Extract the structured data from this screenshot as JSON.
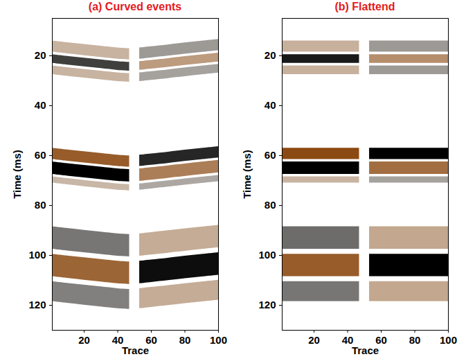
{
  "chart_data": [
    {
      "type": "image",
      "title": "(a) Curved events",
      "x_label": "Trace",
      "y_label": "Time (ms)",
      "xlim": [
        1,
        100
      ],
      "ylim": [
        5,
        130
      ],
      "xticks": [
        20,
        40,
        60,
        80,
        100
      ],
      "yticks": [
        20,
        40,
        60,
        80,
        100,
        120
      ],
      "clim": [
        -1,
        1
      ],
      "color": [
        "#000000",
        "#ffffff",
        "#8b4a12"
      ],
      "stripes": [
        {
          "x": [
            1,
            10,
            20,
            30,
            40,
            47
          ],
          "t_top": [
            14,
            14.7,
            15.4,
            16.1,
            16.8,
            17.1
          ],
          "t_bottom": [
            18.5,
            19.2,
            19.9,
            20.6,
            21.3,
            21.6
          ],
          "amplitude": 0.25
        },
        {
          "x": [
            1,
            10,
            20,
            30,
            40,
            47
          ],
          "t_top": [
            19.5,
            20.2,
            20.9,
            21.6,
            22.3,
            22.6
          ],
          "t_bottom": [
            23,
            23.7,
            24.4,
            25.1,
            25.8,
            26.1
          ],
          "amplitude": -0.75
        },
        {
          "x": [
            1,
            10,
            20,
            30,
            40,
            47
          ],
          "t_top": [
            24,
            24.7,
            25.4,
            26.1,
            26.8,
            27.1
          ],
          "t_bottom": [
            27.5,
            28.2,
            28.9,
            29.6,
            30.3,
            30.6
          ],
          "amplitude": 0.25
        },
        {
          "x": [
            53,
            60,
            70,
            80,
            90,
            100
          ],
          "t_top": [
            16.8,
            16.3,
            15.6,
            14.8,
            14.1,
            13.4
          ],
          "t_bottom": [
            21.3,
            20.8,
            20.1,
            19.3,
            18.6,
            17.9
          ],
          "amplitude": -0.3
        },
        {
          "x": [
            53,
            60,
            70,
            80,
            90,
            100
          ],
          "t_top": [
            22.3,
            21.8,
            21.1,
            20.3,
            19.6,
            18.9
          ],
          "t_bottom": [
            25.8,
            25.3,
            24.6,
            23.8,
            23.1,
            22.4
          ],
          "amplitude": 0.5
        },
        {
          "x": [
            53,
            60,
            70,
            80,
            90,
            100
          ],
          "t_top": [
            26.8,
            26.3,
            25.6,
            24.8,
            24.1,
            23.4
          ],
          "t_bottom": [
            30.3,
            29.8,
            29.1,
            28.3,
            27.6,
            26.9
          ],
          "amplitude": -0.25
        },
        {
          "x": [
            1,
            10,
            20,
            30,
            40,
            47
          ],
          "t_top": [
            57,
            57.7,
            58.4,
            59.1,
            59.8,
            60.1
          ],
          "t_bottom": [
            61.5,
            62.2,
            62.9,
            63.6,
            64.3,
            64.6
          ],
          "amplitude": 0.9
        },
        {
          "x": [
            1,
            10,
            20,
            30,
            40,
            47
          ],
          "t_top": [
            62.5,
            63.2,
            63.9,
            64.6,
            65.3,
            65.6
          ],
          "t_bottom": [
            67.5,
            68.2,
            68.9,
            69.6,
            70.3,
            70.6
          ],
          "amplitude": -1
        },
        {
          "x": [
            1,
            10,
            20,
            30,
            40,
            47
          ],
          "t_top": [
            68.5,
            69.2,
            69.9,
            70.6,
            71.3,
            71.6
          ],
          "t_bottom": [
            71,
            71.7,
            72.4,
            73.1,
            73.8,
            74.1
          ],
          "amplitude": 0.2
        },
        {
          "x": [
            53,
            60,
            70,
            80,
            90,
            100
          ],
          "t_top": [
            59.8,
            59.3,
            58.6,
            57.8,
            57.1,
            56.4
          ],
          "t_bottom": [
            64.3,
            63.8,
            63.1,
            62.3,
            61.6,
            60.9
          ],
          "amplitude": -0.85
        },
        {
          "x": [
            53,
            60,
            70,
            80,
            90,
            100
          ],
          "t_top": [
            65.3,
            64.8,
            64.1,
            63.3,
            62.6,
            61.9
          ],
          "t_bottom": [
            70.3,
            69.8,
            69.1,
            68.3,
            67.6,
            66.9
          ],
          "amplitude": 0.7
        },
        {
          "x": [
            53,
            60,
            70,
            80,
            90,
            100
          ],
          "t_top": [
            71.3,
            70.8,
            70.1,
            69.3,
            68.6,
            67.9
          ],
          "t_bottom": [
            73.8,
            73.3,
            72.6,
            71.8,
            71.1,
            70.4
          ],
          "amplitude": -0.2
        },
        {
          "x": [
            1,
            10,
            20,
            30,
            40,
            47
          ],
          "t_top": [
            88.5,
            89.2,
            89.9,
            90.6,
            91.3,
            91.6
          ],
          "t_bottom": [
            97.5,
            98.2,
            98.9,
            99.6,
            100.3,
            100.6
          ],
          "amplitude": -0.5
        },
        {
          "x": [
            1,
            10,
            20,
            30,
            40,
            47
          ],
          "t_top": [
            99.5,
            100.2,
            100.9,
            101.6,
            102.3,
            102.6
          ],
          "t_bottom": [
            108.5,
            109.2,
            109.9,
            110.6,
            111.3,
            111.6
          ],
          "amplitude": 0.85
        },
        {
          "x": [
            1,
            10,
            20,
            30,
            40,
            47
          ],
          "t_top": [
            110.5,
            111.2,
            111.9,
            112.6,
            113.3,
            113.6
          ],
          "t_bottom": [
            118.5,
            119.2,
            119.9,
            120.6,
            121.3,
            121.6
          ],
          "amplitude": -0.45
        },
        {
          "x": [
            53,
            60,
            70,
            80,
            90,
            100
          ],
          "t_top": [
            91.3,
            90.8,
            90.1,
            89.3,
            88.6,
            87.9
          ],
          "t_bottom": [
            100.3,
            99.8,
            99.1,
            98.3,
            97.6,
            96.9
          ],
          "amplitude": 0.35
        },
        {
          "x": [
            53,
            60,
            70,
            80,
            90,
            100
          ],
          "t_top": [
            102.3,
            101.8,
            101.1,
            100.3,
            99.6,
            98.9
          ],
          "t_bottom": [
            111.3,
            110.8,
            110.1,
            109.3,
            108.6,
            107.9
          ],
          "amplitude": -0.95
        },
        {
          "x": [
            53,
            60,
            70,
            80,
            90,
            100
          ],
          "t_top": [
            113.3,
            112.8,
            112.1,
            111.3,
            110.6,
            109.9
          ],
          "t_bottom": [
            121.3,
            120.8,
            120.1,
            119.3,
            118.6,
            117.9
          ],
          "amplitude": 0.35
        }
      ]
    },
    {
      "type": "image",
      "title": "(b) Flattend",
      "x_label": "Trace",
      "y_label": "Time (ms)",
      "xlim": [
        1,
        100
      ],
      "ylim": [
        5,
        130
      ],
      "xticks": [
        20,
        40,
        60,
        80,
        100
      ],
      "yticks": [
        20,
        40,
        60,
        80,
        100,
        120
      ],
      "clim": [
        -1,
        1
      ],
      "color": [
        "#000000",
        "#ffffff",
        "#8b4a12"
      ],
      "stripes": [
        {
          "x": [
            1,
            10,
            20,
            30,
            40,
            47
          ],
          "t_top": [
            14,
            14,
            14,
            14,
            14,
            14
          ],
          "t_bottom": [
            18.5,
            18.5,
            18.5,
            18.5,
            18.5,
            18.5
          ],
          "amplitude": 0.3
        },
        {
          "x": [
            1,
            10,
            20,
            30,
            40,
            47
          ],
          "t_top": [
            19.5,
            19.5,
            19.5,
            19.5,
            19.5,
            19.5
          ],
          "t_bottom": [
            23,
            23,
            23,
            23,
            23,
            23
          ],
          "amplitude": -0.9
        },
        {
          "x": [
            1,
            10,
            20,
            30,
            40,
            47
          ],
          "t_top": [
            24,
            24,
            24,
            24,
            24,
            24
          ],
          "t_bottom": [
            27.5,
            27.5,
            27.5,
            27.5,
            27.5,
            27.5
          ],
          "amplitude": 0.3
        },
        {
          "x": [
            53,
            60,
            70,
            80,
            90,
            100
          ],
          "t_top": [
            14,
            14,
            14,
            14,
            14,
            14
          ],
          "t_bottom": [
            18.5,
            18.5,
            18.5,
            18.5,
            18.5,
            18.5
          ],
          "amplitude": -0.3
        },
        {
          "x": [
            53,
            60,
            70,
            80,
            90,
            100
          ],
          "t_top": [
            19.5,
            19.5,
            19.5,
            19.5,
            19.5,
            19.5
          ],
          "t_bottom": [
            23,
            23,
            23,
            23,
            23,
            23
          ],
          "amplitude": 0.6
        },
        {
          "x": [
            53,
            60,
            70,
            80,
            90,
            100
          ],
          "t_top": [
            24,
            24,
            24,
            24,
            24,
            24
          ],
          "t_bottom": [
            27.5,
            27.5,
            27.5,
            27.5,
            27.5,
            27.5
          ],
          "amplitude": -0.3
        },
        {
          "x": [
            1,
            10,
            20,
            30,
            40,
            47
          ],
          "t_top": [
            57,
            57,
            57,
            57,
            57,
            57
          ],
          "t_bottom": [
            61.5,
            61.5,
            61.5,
            61.5,
            61.5,
            61.5
          ],
          "amplitude": 1
        },
        {
          "x": [
            1,
            10,
            20,
            30,
            40,
            47
          ],
          "t_top": [
            62.5,
            62.5,
            62.5,
            62.5,
            62.5,
            62.5
          ],
          "t_bottom": [
            67.5,
            67.5,
            67.5,
            67.5,
            67.5,
            67.5
          ],
          "amplitude": -1
        },
        {
          "x": [
            1,
            10,
            20,
            30,
            40,
            47
          ],
          "t_top": [
            68.5,
            68.5,
            68.5,
            68.5,
            68.5,
            68.5
          ],
          "t_bottom": [
            71,
            71,
            71,
            71,
            71,
            71
          ],
          "amplitude": 0.25
        },
        {
          "x": [
            53,
            60,
            70,
            80,
            90,
            100
          ],
          "t_top": [
            57,
            57,
            57,
            57,
            57,
            57
          ],
          "t_bottom": [
            61.5,
            61.5,
            61.5,
            61.5,
            61.5,
            61.5
          ],
          "amplitude": -1
        },
        {
          "x": [
            53,
            60,
            70,
            80,
            90,
            100
          ],
          "t_top": [
            62.5,
            62.5,
            62.5,
            62.5,
            62.5,
            62.5
          ],
          "t_bottom": [
            67.5,
            67.5,
            67.5,
            67.5,
            67.5,
            67.5
          ],
          "amplitude": 0.8
        },
        {
          "x": [
            53,
            60,
            70,
            80,
            90,
            100
          ],
          "t_top": [
            68.5,
            68.5,
            68.5,
            68.5,
            68.5,
            68.5
          ],
          "t_bottom": [
            71,
            71,
            71,
            71,
            71,
            71
          ],
          "amplitude": -0.25
        },
        {
          "x": [
            1,
            10,
            20,
            30,
            40,
            47
          ],
          "t_top": [
            88.5,
            88.5,
            88.5,
            88.5,
            88.5,
            88.5
          ],
          "t_bottom": [
            97.5,
            97.5,
            97.5,
            97.5,
            97.5,
            97.5
          ],
          "amplitude": -0.55
        },
        {
          "x": [
            1,
            10,
            20,
            30,
            40,
            47
          ],
          "t_top": [
            99.5,
            99.5,
            99.5,
            99.5,
            99.5,
            99.5
          ],
          "t_bottom": [
            108.5,
            108.5,
            108.5,
            108.5,
            108.5,
            108.5
          ],
          "amplitude": 0.9
        },
        {
          "x": [
            1,
            10,
            20,
            30,
            40,
            47
          ],
          "t_top": [
            110.5,
            110.5,
            110.5,
            110.5,
            110.5,
            110.5
          ],
          "t_bottom": [
            118.5,
            118.5,
            118.5,
            118.5,
            118.5,
            118.5
          ],
          "amplitude": -0.5
        },
        {
          "x": [
            53,
            60,
            70,
            80,
            90,
            100
          ],
          "t_top": [
            88.5,
            88.5,
            88.5,
            88.5,
            88.5,
            88.5
          ],
          "t_bottom": [
            97.5,
            97.5,
            97.5,
            97.5,
            97.5,
            97.5
          ],
          "amplitude": 0.4
        },
        {
          "x": [
            53,
            60,
            70,
            80,
            90,
            100
          ],
          "t_top": [
            99.5,
            99.5,
            99.5,
            99.5,
            99.5,
            99.5
          ],
          "t_bottom": [
            108.5,
            108.5,
            108.5,
            108.5,
            108.5,
            108.5
          ],
          "amplitude": -1
        },
        {
          "x": [
            53,
            60,
            70,
            80,
            90,
            100
          ],
          "t_top": [
            110.5,
            110.5,
            110.5,
            110.5,
            110.5,
            110.5
          ],
          "t_bottom": [
            118.5,
            118.5,
            118.5,
            118.5,
            118.5,
            118.5
          ],
          "amplitude": 0.4
        }
      ]
    }
  ]
}
